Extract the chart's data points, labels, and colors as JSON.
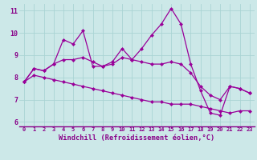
{
  "xlabel": "Windchill (Refroidissement éolien,°C)",
  "x": [
    0,
    1,
    2,
    3,
    4,
    5,
    6,
    7,
    8,
    9,
    10,
    11,
    12,
    13,
    14,
    15,
    16,
    17,
    18,
    19,
    20,
    21,
    22,
    23
  ],
  "line1": [
    7.8,
    8.4,
    8.3,
    8.6,
    9.7,
    9.5,
    10.1,
    8.5,
    8.5,
    8.7,
    9.3,
    8.8,
    9.3,
    9.9,
    10.4,
    11.1,
    10.4,
    8.6,
    7.4,
    6.4,
    6.3,
    7.6,
    7.5,
    7.3
  ],
  "line2": [
    7.8,
    8.4,
    8.3,
    8.6,
    8.8,
    8.8,
    8.9,
    8.7,
    8.5,
    8.6,
    8.9,
    8.8,
    8.7,
    8.6,
    8.6,
    8.7,
    8.6,
    8.2,
    7.6,
    7.2,
    7.0,
    7.6,
    7.5,
    7.3
  ],
  "line3": [
    7.8,
    8.1,
    8.0,
    7.9,
    7.8,
    7.7,
    7.6,
    7.5,
    7.4,
    7.3,
    7.2,
    7.1,
    7.0,
    6.9,
    6.9,
    6.8,
    6.8,
    6.8,
    6.7,
    6.6,
    6.5,
    6.4,
    6.5,
    6.5
  ],
  "line_color": "#990099",
  "bg_color": "#cce8e8",
  "grid_color": "#aad4d4",
  "tick_color": "#880088",
  "spine_color": "#880088",
  "ylim": [
    5.8,
    11.3
  ],
  "yticks": [
    6,
    7,
    8,
    9,
    10,
    11
  ],
  "markersize": 2.5,
  "linewidth": 0.9
}
